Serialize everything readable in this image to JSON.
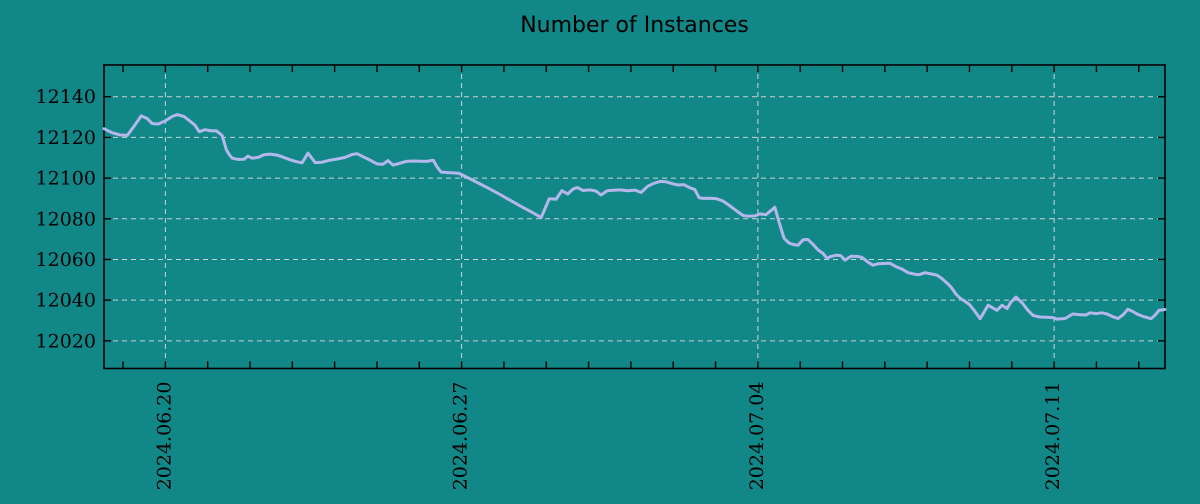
{
  "title": "Number of Instances",
  "colors": {
    "background": "#128788",
    "line": "#b4b7eb",
    "grid": "#c9d4d4",
    "axis": "#000000",
    "text": "#000000"
  },
  "chart_data": {
    "type": "line",
    "title": "Number of Instances",
    "xlabel": "",
    "ylabel": "",
    "legend": false,
    "grid": true,
    "x_unit": "days since 2024-06-18 00:00",
    "xlim": [
      0.55,
      25.62
    ],
    "ylim": [
      12006.4,
      12155.6
    ],
    "y_ticks": [
      12020,
      12040,
      12060,
      12080,
      12100,
      12120,
      12140
    ],
    "y_tick_labels": [
      "12020",
      "12040",
      "12060",
      "12080",
      "12100",
      "12120",
      "12140"
    ],
    "x_major_ticks": [
      {
        "t": 2,
        "label": "2024.06.20"
      },
      {
        "t": 9,
        "label": "2024.06.27"
      },
      {
        "t": 16,
        "label": "2024.07.04"
      },
      {
        "t": 23,
        "label": "2024.07.11"
      }
    ],
    "x_minor_ticks": {
      "start": 1,
      "end": 25,
      "step": 1
    },
    "series": [
      {
        "name": "instances",
        "points": [
          [
            0.55,
            12124.3
          ],
          [
            0.74,
            12122.3
          ],
          [
            0.93,
            12121.2
          ],
          [
            1.1,
            12121.0
          ],
          [
            1.26,
            12125.5
          ],
          [
            1.43,
            12130.6
          ],
          [
            1.57,
            12129.3
          ],
          [
            1.69,
            12126.8
          ],
          [
            1.83,
            12126.6
          ],
          [
            1.99,
            12128.0
          ],
          [
            2.16,
            12130.3
          ],
          [
            2.28,
            12131.2
          ],
          [
            2.44,
            12130.3
          ],
          [
            2.58,
            12128.0
          ],
          [
            2.7,
            12126.0
          ],
          [
            2.8,
            12122.8
          ],
          [
            2.94,
            12123.8
          ],
          [
            3.08,
            12123.2
          ],
          [
            3.2,
            12123.3
          ],
          [
            3.34,
            12121.0
          ],
          [
            3.44,
            12114.0
          ],
          [
            3.51,
            12111.5
          ],
          [
            3.58,
            12109.8
          ],
          [
            3.72,
            12109.2
          ],
          [
            3.86,
            12109.3
          ],
          [
            3.95,
            12110.8
          ],
          [
            4.05,
            12109.8
          ],
          [
            4.19,
            12110.2
          ],
          [
            4.33,
            12111.5
          ],
          [
            4.47,
            12111.8
          ],
          [
            4.64,
            12111.3
          ],
          [
            4.78,
            12110.3
          ],
          [
            4.95,
            12109.0
          ],
          [
            5.11,
            12108.0
          ],
          [
            5.23,
            12107.5
          ],
          [
            5.37,
            12112.3
          ],
          [
            5.54,
            12107.6
          ],
          [
            5.7,
            12107.8
          ],
          [
            5.89,
            12108.8
          ],
          [
            6.06,
            12109.4
          ],
          [
            6.25,
            12110.2
          ],
          [
            6.41,
            12111.6
          ],
          [
            6.53,
            12112.0
          ],
          [
            6.67,
            12110.5
          ],
          [
            6.84,
            12108.8
          ],
          [
            7.0,
            12107.0
          ],
          [
            7.14,
            12106.8
          ],
          [
            7.26,
            12108.6
          ],
          [
            7.38,
            12106.4
          ],
          [
            7.52,
            12107.2
          ],
          [
            7.69,
            12108.2
          ],
          [
            7.85,
            12108.4
          ],
          [
            8.02,
            12108.3
          ],
          [
            8.18,
            12108.2
          ],
          [
            8.33,
            12108.8
          ],
          [
            8.42,
            12105.5
          ],
          [
            8.51,
            12103.0
          ],
          [
            8.68,
            12102.7
          ],
          [
            8.84,
            12102.5
          ],
          [
            8.94,
            12102.3
          ],
          [
            9.2,
            12099.6
          ],
          [
            9.44,
            12097.1
          ],
          [
            9.67,
            12094.6
          ],
          [
            9.91,
            12091.9
          ],
          [
            10.14,
            12089.2
          ],
          [
            10.38,
            12086.4
          ],
          [
            10.62,
            12083.7
          ],
          [
            10.78,
            12081.8
          ],
          [
            10.88,
            12080.6
          ],
          [
            10.97,
            12085.0
          ],
          [
            11.07,
            12089.8
          ],
          [
            11.23,
            12089.6
          ],
          [
            11.37,
            12093.8
          ],
          [
            11.51,
            12092.2
          ],
          [
            11.63,
            12094.6
          ],
          [
            11.73,
            12095.4
          ],
          [
            11.87,
            12093.9
          ],
          [
            12.03,
            12094.2
          ],
          [
            12.18,
            12093.6
          ],
          [
            12.29,
            12091.7
          ],
          [
            12.44,
            12093.8
          ],
          [
            12.58,
            12094.0
          ],
          [
            12.74,
            12094.2
          ],
          [
            12.93,
            12093.8
          ],
          [
            13.1,
            12094.1
          ],
          [
            13.24,
            12092.9
          ],
          [
            13.4,
            12096.0
          ],
          [
            13.55,
            12097.5
          ],
          [
            13.69,
            12098.4
          ],
          [
            13.83,
            12098.2
          ],
          [
            13.97,
            12097.3
          ],
          [
            14.11,
            12096.6
          ],
          [
            14.25,
            12096.8
          ],
          [
            14.4,
            12095.2
          ],
          [
            14.51,
            12094.4
          ],
          [
            14.61,
            12090.4
          ],
          [
            14.7,
            12090.0
          ],
          [
            14.87,
            12090.1
          ],
          [
            15.03,
            12089.8
          ],
          [
            15.18,
            12088.7
          ],
          [
            15.37,
            12085.9
          ],
          [
            15.53,
            12083.4
          ],
          [
            15.65,
            12081.6
          ],
          [
            15.79,
            12081.2
          ],
          [
            15.93,
            12081.4
          ],
          [
            16.05,
            12082.4
          ],
          [
            16.19,
            12082.0
          ],
          [
            16.31,
            12084.0
          ],
          [
            16.4,
            12085.7
          ],
          [
            16.52,
            12077.0
          ],
          [
            16.62,
            12070.4
          ],
          [
            16.74,
            12068.0
          ],
          [
            16.85,
            12067.3
          ],
          [
            16.95,
            12067.0
          ],
          [
            17.07,
            12069.7
          ],
          [
            17.18,
            12069.8
          ],
          [
            17.3,
            12067.5
          ],
          [
            17.42,
            12064.7
          ],
          [
            17.54,
            12063.0
          ],
          [
            17.63,
            12060.6
          ],
          [
            17.73,
            12061.5
          ],
          [
            17.85,
            12062.1
          ],
          [
            17.96,
            12061.9
          ],
          [
            18.06,
            12059.7
          ],
          [
            18.2,
            12061.6
          ],
          [
            18.34,
            12061.5
          ],
          [
            18.46,
            12061.0
          ],
          [
            18.6,
            12058.7
          ],
          [
            18.72,
            12057.2
          ],
          [
            18.84,
            12057.9
          ],
          [
            18.98,
            12058.0
          ],
          [
            19.12,
            12058.1
          ],
          [
            19.26,
            12056.5
          ],
          [
            19.41,
            12055.2
          ],
          [
            19.55,
            12053.5
          ],
          [
            19.69,
            12052.8
          ],
          [
            19.81,
            12052.5
          ],
          [
            19.95,
            12053.5
          ],
          [
            20.09,
            12052.9
          ],
          [
            20.23,
            12052.3
          ],
          [
            20.35,
            12050.6
          ],
          [
            20.47,
            12048.4
          ],
          [
            20.56,
            12046.5
          ],
          [
            20.68,
            12043.0
          ],
          [
            20.78,
            12040.9
          ],
          [
            20.87,
            12039.8
          ],
          [
            21.01,
            12037.6
          ],
          [
            21.11,
            12035.0
          ],
          [
            21.25,
            12030.9
          ],
          [
            21.34,
            12034.0
          ],
          [
            21.44,
            12037.5
          ],
          [
            21.55,
            12036.2
          ],
          [
            21.65,
            12035.0
          ],
          [
            21.77,
            12037.5
          ],
          [
            21.89,
            12035.9
          ],
          [
            21.98,
            12039.0
          ],
          [
            22.1,
            12041.5
          ],
          [
            22.26,
            12038.3
          ],
          [
            22.38,
            12035.0
          ],
          [
            22.5,
            12032.5
          ],
          [
            22.66,
            12031.7
          ],
          [
            22.83,
            12031.6
          ],
          [
            22.97,
            12031.4
          ],
          [
            23.07,
            12030.7
          ],
          [
            23.26,
            12031.0
          ],
          [
            23.44,
            12033.2
          ],
          [
            23.59,
            12032.9
          ],
          [
            23.75,
            12032.7
          ],
          [
            23.85,
            12033.8
          ],
          [
            23.99,
            12033.4
          ],
          [
            24.13,
            12033.8
          ],
          [
            24.25,
            12033.2
          ],
          [
            24.37,
            12032.0
          ],
          [
            24.51,
            12031.0
          ],
          [
            24.63,
            12032.8
          ],
          [
            24.74,
            12035.5
          ],
          [
            24.86,
            12034.4
          ],
          [
            24.98,
            12033.0
          ],
          [
            25.1,
            12032.0
          ],
          [
            25.22,
            12031.3
          ],
          [
            25.29,
            12030.9
          ],
          [
            25.38,
            12032.5
          ],
          [
            25.48,
            12035.0
          ],
          [
            25.62,
            12035.4
          ]
        ]
      }
    ]
  }
}
